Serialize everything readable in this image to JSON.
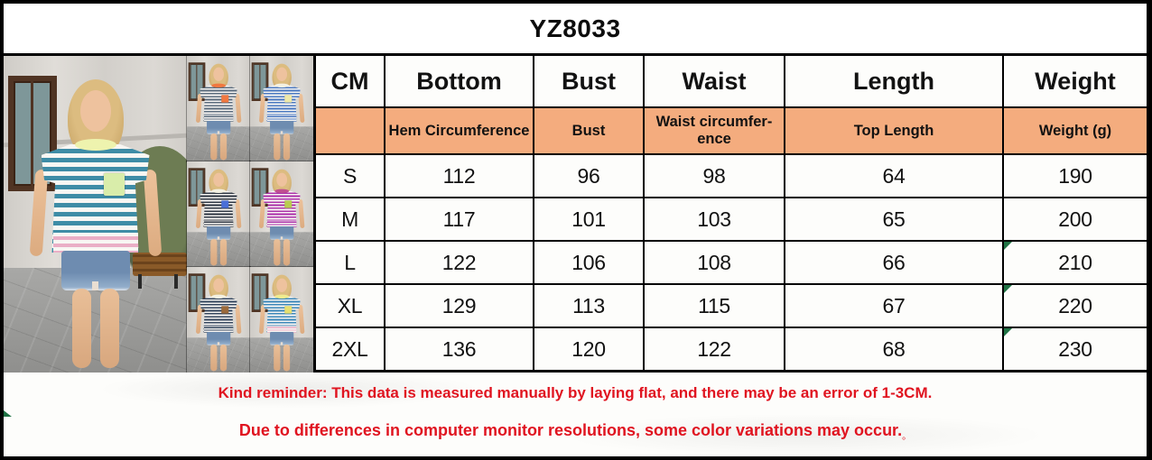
{
  "title": "YZ8033",
  "size_table": {
    "headers": [
      "CM",
      "Bottom",
      "Bust",
      "Waist",
      "Length",
      "Weight"
    ],
    "subheaders": [
      "",
      "Hem Circumference",
      "Bust",
      "Waist circumfer-\nence",
      "Top Length",
      "Weight (g)"
    ],
    "rows": [
      {
        "size": "S",
        "values": [
          "112",
          "96",
          "98",
          "64",
          "190"
        ],
        "weight_flagged": false
      },
      {
        "size": "M",
        "values": [
          "117",
          "101",
          "103",
          "65",
          "200"
        ],
        "weight_flagged": false
      },
      {
        "size": "L",
        "values": [
          "122",
          "106",
          "108",
          "66",
          "210"
        ],
        "weight_flagged": true
      },
      {
        "size": "XL",
        "values": [
          "129",
          "113",
          "115",
          "67",
          "220"
        ],
        "weight_flagged": true
      },
      {
        "size": "2XL",
        "values": [
          "136",
          "120",
          "122",
          "68",
          "230"
        ],
        "weight_flagged": true
      }
    ]
  },
  "notes": {
    "line1": "Kind reminder: This data is measured manually by laying flat, and there may be an error of 1-3CM.",
    "line2": "Due to differences in computer monitor resolutions, some color variations may occur.",
    "line2_suffix": "。"
  },
  "colors": {
    "subheader_bg": "#F4AC7E",
    "note_red": "#E01420",
    "border": "#000000",
    "indicator_green": "#1F7244"
  },
  "photos": {
    "main": {
      "name": "teal-stripe-tee-yellow-pocket",
      "stripe": "#3E8CA6",
      "pocket": "#D9EDAA",
      "trim": "#EEF3AE",
      "hem": "#EAAEC6"
    },
    "variants": [
      {
        "name": "navy-stripe-tee-orange-pocket",
        "stripe": "#5A6B7C",
        "pocket": "#F07840",
        "trim": "#F07840",
        "hem": "#5A6B7C"
      },
      {
        "name": "blue-stripe-tee-cream-pocket",
        "stripe": "#4A78C0",
        "pocket": "#EFE9A8",
        "trim": "#F4F1E2",
        "hem": "#4A78C0"
      },
      {
        "name": "black-stripe-tee-blue-pocket",
        "stripe": "#2C3440",
        "pocket": "#4A6FD8",
        "trim": "#F4F1E2",
        "hem": "#2C3440"
      },
      {
        "name": "purple-stripe-tee-green-pocket",
        "stripe": "#AA2FA8",
        "pocket": "#B8CC50",
        "trim": "#C05090",
        "hem": "#AA2FA8"
      },
      {
        "name": "navy-stripe-tee-brown-pocket",
        "stripe": "#32445C",
        "pocket": "#9A6A3C",
        "trim": "#F4F1E2",
        "hem": "#32445C"
      },
      {
        "name": "blue-stripe-tee-yellow-pocket",
        "stripe": "#3A86B8",
        "pocket": "#E8E070",
        "trim": "#F0EC90",
        "hem": "#EAAEC6"
      }
    ]
  }
}
